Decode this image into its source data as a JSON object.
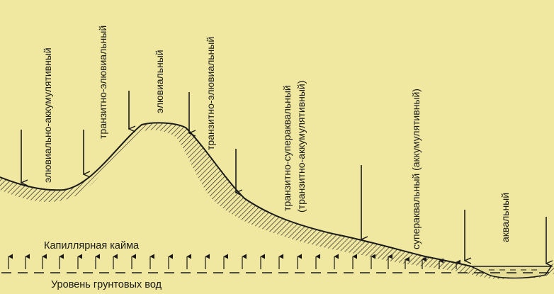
{
  "colors": {
    "background": "#f0e8a0",
    "ink": "#1a1a1a"
  },
  "landscape_labels": [
    "элювиально-аккумулятивный",
    "транзитно-элювиальный",
    "элювиальный",
    "транзитно-элювиальный",
    "транзитно-супераквальный",
    "(транзитно-аккумулятивный)",
    "супераквальный (аккумулятивный)",
    "аквальный"
  ],
  "capillary_fringe_label": "Капиллярная кайма",
  "groundwater_level_label": "Уровень грунтовых вод"
}
